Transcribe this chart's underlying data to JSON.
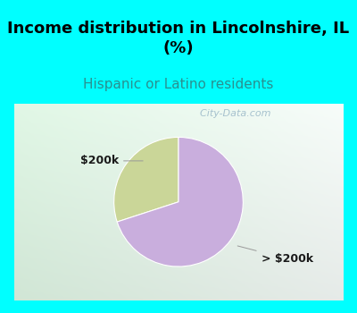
{
  "title": "Income distribution in Lincolnshire, IL\n(%)",
  "subtitle": "Hispanic or Latino residents",
  "title_color": "#000000",
  "subtitle_color": "#2a9090",
  "title_bg_color": "#00FFFF",
  "chart_bg_left": "#e8f8f0",
  "chart_bg_right": "#f8f8ff",
  "chart_bg_bottom": "#d0edd8",
  "slices": [
    30.0,
    70.0
  ],
  "slice_colors": [
    "#cad698",
    "#c9aedd"
  ],
  "labels": [
    "$200k",
    "> $200k"
  ],
  "label_color": "#1a1a1a",
  "watermark": "  City-Data.com",
  "watermark_color": "#9ab8c8",
  "startangle": 90,
  "title_fontsize": 13,
  "subtitle_fontsize": 11,
  "label_fontsize": 9
}
